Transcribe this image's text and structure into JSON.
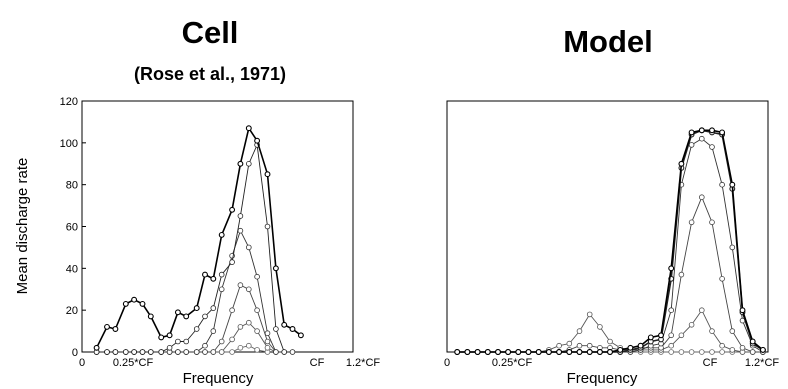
{
  "chart_data": [
    {
      "type": "line",
      "title": "Cell",
      "subtitle": "(Rose et al., 1971)",
      "xlabel": "Frequency",
      "ylabel": "Mean discharge rate",
      "ylim": [
        0,
        120
      ],
      "yticks": [
        "0",
        "20",
        "40",
        "60",
        "80",
        "100",
        "120"
      ],
      "xticks": [
        "0",
        "0.25*CF",
        "CF",
        "1.2*CF"
      ],
      "grid": false,
      "x": [
        0.07,
        0.12,
        0.16,
        0.21,
        0.25,
        0.29,
        0.33,
        0.38,
        0.42,
        0.46,
        0.5,
        0.55,
        0.59,
        0.63,
        0.67,
        0.72,
        0.76,
        0.8,
        0.84,
        0.89,
        0.93,
        0.97,
        1.01,
        1.05,
        1.1,
        1.14,
        1.18,
        1.23
      ],
      "series": [
        {
          "values": [
            2,
            12,
            11,
            23,
            25,
            23,
            17,
            7,
            8,
            19,
            17,
            21,
            37,
            35,
            56,
            68,
            90,
            107,
            101,
            85,
            40,
            13,
            11,
            8,
            null,
            null,
            null,
            null
          ],
          "bold": true
        },
        {
          "values": [
            0,
            0,
            0,
            0,
            0,
            0,
            0,
            0,
            2,
            5,
            5,
            11,
            17,
            21,
            37,
            43,
            65,
            90,
            99,
            60,
            11,
            0,
            0,
            null,
            null,
            null,
            null,
            null
          ]
        },
        {
          "values": [
            0,
            0,
            0,
            0,
            0,
            0,
            0,
            0,
            0,
            0,
            0,
            0,
            3,
            10,
            30,
            46,
            58,
            50,
            36,
            9,
            0,
            0,
            null,
            null,
            null,
            null,
            null,
            null
          ]
        },
        {
          "values": [
            0,
            0,
            0,
            0,
            0,
            0,
            0,
            0,
            0,
            0,
            0,
            0,
            0,
            0,
            5,
            20,
            32,
            30,
            20,
            5,
            0,
            null,
            null,
            null,
            null,
            null,
            null,
            null
          ]
        },
        {
          "values": [
            0,
            0,
            0,
            0,
            0,
            0,
            0,
            0,
            0,
            0,
            0,
            0,
            0,
            0,
            0,
            6,
            12,
            14,
            10,
            2,
            0,
            null,
            null,
            null,
            null,
            null,
            null,
            null
          ]
        },
        {
          "values": [
            0,
            0,
            0,
            0,
            0,
            0,
            0,
            0,
            0,
            0,
            0,
            0,
            0,
            0,
            0,
            0,
            2,
            3,
            1,
            0,
            null,
            null,
            null,
            null,
            null,
            null,
            null,
            null
          ]
        }
      ]
    },
    {
      "type": "line",
      "title": "Model",
      "xlabel": "Frequency",
      "xticks": [
        "0",
        "0.25*CF",
        "CF",
        "1.2*CF"
      ],
      "ylim": [
        0,
        120
      ],
      "grid": false,
      "x": [
        0.04,
        0.08,
        0.12,
        0.16,
        0.2,
        0.24,
        0.28,
        0.32,
        0.36,
        0.4,
        0.44,
        0.48,
        0.52,
        0.56,
        0.6,
        0.64,
        0.68,
        0.72,
        0.76,
        0.8,
        0.84,
        0.88,
        0.92,
        0.96,
        1.0,
        1.04,
        1.08,
        1.12,
        1.16,
        1.2,
        1.24
      ],
      "series": [
        {
          "values": [
            0,
            0,
            0,
            0,
            0,
            0,
            0,
            0,
            0,
            0,
            0,
            0,
            0,
            0,
            0,
            0,
            1,
            2,
            3,
            7,
            8,
            40,
            90,
            105,
            106,
            106,
            105,
            80,
            20,
            5,
            1
          ],
          "bold": true
        },
        {
          "values": [
            0,
            0,
            0,
            0,
            0,
            0,
            0,
            0,
            0,
            0,
            0,
            0,
            0,
            0,
            0,
            0,
            0,
            1,
            2,
            5,
            6,
            35,
            88,
            104,
            106,
            105,
            104,
            78,
            19,
            4,
            1
          ],
          "bold": true
        },
        {
          "values": [
            0,
            0,
            0,
            0,
            0,
            0,
            0,
            0,
            0,
            0,
            0,
            0,
            0,
            0,
            0,
            0,
            0,
            0,
            1,
            3,
            4,
            20,
            80,
            99,
            102,
            98,
            80,
            50,
            15,
            3,
            0
          ]
        },
        {
          "values": [
            0,
            0,
            0,
            0,
            0,
            0,
            0,
            0,
            0,
            0,
            0,
            1,
            3,
            3,
            2,
            2,
            1,
            1,
            2,
            2,
            2,
            8,
            37,
            62,
            74,
            62,
            35,
            10,
            2,
            0,
            0
          ]
        },
        {
          "values": [
            0,
            0,
            0,
            0,
            0,
            0,
            0,
            0,
            0,
            1,
            3,
            4,
            10,
            18,
            12,
            5,
            2,
            1,
            1,
            1,
            1,
            3,
            8,
            13,
            20,
            10,
            3,
            1,
            0,
            0,
            0
          ]
        },
        {
          "values": [
            0,
            0,
            0,
            0,
            0,
            0,
            0,
            0,
            0,
            0,
            0,
            0,
            0,
            0,
            0,
            0,
            0,
            0,
            0,
            0,
            0,
            0,
            0,
            0,
            0,
            0,
            0,
            0,
            0,
            0,
            0
          ]
        }
      ]
    }
  ]
}
